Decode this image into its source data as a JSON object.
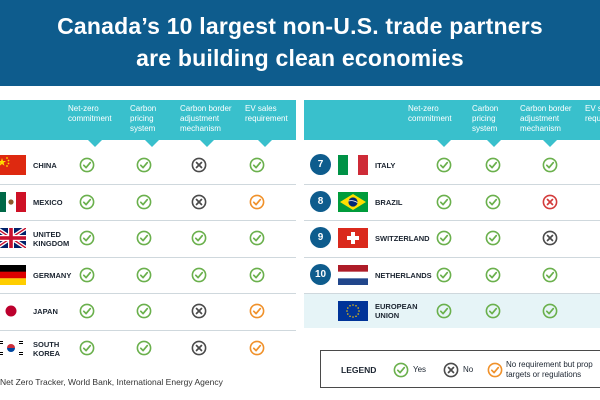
{
  "title_line1": "Canada’s 10 largest non-U.S. trade partners",
  "title_line2": "are building clean economies",
  "columns": {
    "net_zero": "Net-zero commitment",
    "carbon_pricing": "Carbon pricing system",
    "border": "Carbon border adjustment mechanism",
    "ev": "EV sales requirement"
  },
  "left_rows": [
    {
      "name": "CHINA",
      "flag": "china",
      "marks": [
        "yes",
        "yes",
        "no",
        "yes"
      ]
    },
    {
      "name": "MEXICO",
      "flag": "mexico",
      "marks": [
        "yes",
        "yes",
        "no",
        "partial"
      ]
    },
    {
      "name": "UNITED KINGDOM",
      "flag": "uk",
      "marks": [
        "yes",
        "yes",
        "yes",
        "yes"
      ]
    },
    {
      "name": "GERMANY",
      "flag": "germany",
      "marks": [
        "yes",
        "yes",
        "yes",
        "yes"
      ]
    },
    {
      "name": "JAPAN",
      "flag": "japan",
      "marks": [
        "yes",
        "yes",
        "no",
        "partial"
      ]
    },
    {
      "name": "SOUTH KOREA",
      "flag": "south-korea",
      "marks": [
        "yes",
        "yes",
        "no",
        "partial"
      ]
    }
  ],
  "right_rows": [
    {
      "rank": "7",
      "name": "ITALY",
      "flag": "italy",
      "marks": [
        "yes",
        "yes",
        "yes"
      ]
    },
    {
      "rank": "8",
      "name": "BRAZIL",
      "flag": "brazil",
      "marks": [
        "yes",
        "yes",
        "red-no"
      ]
    },
    {
      "rank": "9",
      "name": "SWITZERLAND",
      "flag": "switzerland",
      "marks": [
        "yes",
        "yes",
        "no"
      ]
    },
    {
      "rank": "10",
      "name": "NETHERLANDS",
      "flag": "netherlands",
      "marks": [
        "yes",
        "yes",
        "yes"
      ]
    },
    {
      "rank": "",
      "name": "EUROPEAN UNION",
      "flag": "eu",
      "marks": [
        "yes",
        "yes",
        "yes"
      ]
    }
  ],
  "legend": {
    "title": "LEGEND",
    "yes": "Yes",
    "no": "No",
    "partial_line1": "No requirement but prop",
    "partial_line2": "targets or regulations"
  },
  "source": "Net Zero Tracker, World Bank, International Energy Agency",
  "colors": {
    "banner": "#0e5c8d",
    "teal": "#39c0cc",
    "yes": "#6ab04c",
    "no": "#4a4a4a",
    "partial": "#f0912a",
    "red_no": "#d33b3b"
  }
}
